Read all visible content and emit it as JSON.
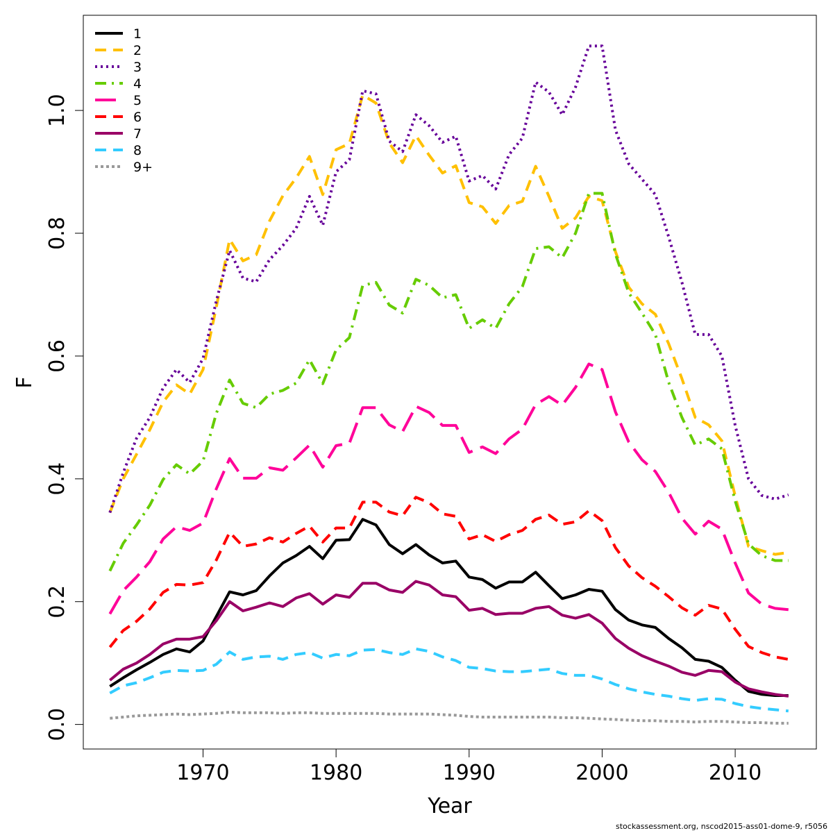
{
  "footer": {
    "text": "stockassessment.org, nscod2015-ass01-dome-9, r5056"
  },
  "chart_data": {
    "type": "line",
    "title": "",
    "xlabel": "Year",
    "ylabel": "F",
    "xlim": [
      1961.0,
      2016.1
    ],
    "ylim": [
      -0.04,
      1.155
    ],
    "xticks": [
      1970,
      1980,
      1990,
      2000,
      2010
    ],
    "yticks": [
      0.0,
      0.2,
      0.4,
      0.6,
      0.8,
      1.0
    ],
    "ytick_labels": [
      "0.0",
      "0.2",
      "0.4",
      "0.6",
      "0.8",
      "1.0"
    ],
    "grid": false,
    "legend_position": "top-left",
    "x": [
      1963,
      1964,
      1965,
      1966,
      1967,
      1968,
      1969,
      1970,
      1971,
      1972,
      1973,
      1974,
      1975,
      1976,
      1977,
      1978,
      1979,
      1980,
      1981,
      1982,
      1983,
      1984,
      1985,
      1986,
      1987,
      1988,
      1989,
      1990,
      1991,
      1992,
      1993,
      1994,
      1995,
      1996,
      1997,
      1998,
      1999,
      2000,
      2001,
      2002,
      2003,
      2004,
      2005,
      2006,
      2007,
      2008,
      2009,
      2010,
      2011,
      2012,
      2013,
      2014
    ],
    "series": [
      {
        "name": "1",
        "color": "#000000",
        "dash": "solid",
        "values": [
          0.062,
          0.076,
          0.089,
          0.101,
          0.114,
          0.123,
          0.118,
          0.136,
          0.176,
          0.216,
          0.211,
          0.218,
          0.242,
          0.263,
          0.275,
          0.29,
          0.27,
          0.3,
          0.301,
          0.334,
          0.325,
          0.293,
          0.278,
          0.293,
          0.276,
          0.263,
          0.266,
          0.24,
          0.236,
          0.222,
          0.232,
          0.232,
          0.248,
          0.226,
          0.205,
          0.211,
          0.22,
          0.217,
          0.187,
          0.17,
          0.162,
          0.158,
          0.14,
          0.125,
          0.106,
          0.103,
          0.093,
          0.072,
          0.054,
          0.049,
          0.047,
          0.047
        ]
      },
      {
        "name": "2",
        "color": "#ffc000",
        "dash": "16,10",
        "values": [
          0.345,
          0.4,
          0.44,
          0.48,
          0.525,
          0.553,
          0.538,
          0.578,
          0.68,
          0.79,
          0.755,
          0.765,
          0.82,
          0.861,
          0.89,
          0.925,
          0.863,
          0.936,
          0.946,
          1.025,
          1.012,
          0.947,
          0.915,
          0.959,
          0.927,
          0.898,
          0.91,
          0.85,
          0.843,
          0.816,
          0.845,
          0.852,
          0.909,
          0.86,
          0.808,
          0.825,
          0.86,
          0.853,
          0.77,
          0.712,
          0.685,
          0.668,
          0.62,
          0.563,
          0.5,
          0.488,
          0.462,
          0.372,
          0.29,
          0.283,
          0.277,
          0.28
        ]
      },
      {
        "name": "3",
        "color": "#660099",
        "dash": "3,5",
        "values": [
          0.345,
          0.41,
          0.466,
          0.5,
          0.548,
          0.578,
          0.557,
          0.596,
          0.69,
          0.772,
          0.727,
          0.721,
          0.757,
          0.78,
          0.808,
          0.86,
          0.813,
          0.9,
          0.92,
          1.032,
          1.027,
          0.95,
          0.933,
          0.993,
          0.975,
          0.948,
          0.958,
          0.885,
          0.894,
          0.872,
          0.928,
          0.955,
          1.046,
          1.03,
          0.993,
          1.038,
          1.105,
          1.105,
          0.968,
          0.913,
          0.888,
          0.863,
          0.794,
          0.72,
          0.635,
          0.635,
          0.6,
          0.487,
          0.4,
          0.373,
          0.367,
          0.374
        ]
      },
      {
        "name": "4",
        "color": "#66cc00",
        "dash": "16,8,3,8",
        "values": [
          0.25,
          0.295,
          0.325,
          0.357,
          0.399,
          0.423,
          0.408,
          0.429,
          0.507,
          0.561,
          0.523,
          0.516,
          0.538,
          0.544,
          0.556,
          0.594,
          0.555,
          0.61,
          0.63,
          0.715,
          0.72,
          0.683,
          0.67,
          0.725,
          0.715,
          0.695,
          0.7,
          0.645,
          0.659,
          0.645,
          0.685,
          0.713,
          0.775,
          0.778,
          0.76,
          0.8,
          0.865,
          0.865,
          0.766,
          0.703,
          0.67,
          0.635,
          0.557,
          0.5,
          0.455,
          0.465,
          0.449,
          0.364,
          0.294,
          0.275,
          0.267,
          0.267
        ]
      },
      {
        "name": "5",
        "color": "#ff0099",
        "dash": "30,12",
        "values": [
          0.18,
          0.218,
          0.24,
          0.265,
          0.302,
          0.322,
          0.316,
          0.328,
          0.384,
          0.433,
          0.401,
          0.401,
          0.418,
          0.414,
          0.434,
          0.455,
          0.419,
          0.454,
          0.458,
          0.516,
          0.516,
          0.488,
          0.477,
          0.518,
          0.508,
          0.487,
          0.487,
          0.443,
          0.452,
          0.441,
          0.465,
          0.481,
          0.521,
          0.534,
          0.52,
          0.549,
          0.587,
          0.578,
          0.509,
          0.46,
          0.431,
          0.412,
          0.378,
          0.336,
          0.31,
          0.331,
          0.318,
          0.263,
          0.214,
          0.196,
          0.189,
          0.187
        ]
      },
      {
        "name": "6",
        "color": "#ff0000",
        "dash": "16,10",
        "values": [
          0.126,
          0.153,
          0.168,
          0.188,
          0.215,
          0.228,
          0.227,
          0.231,
          0.268,
          0.313,
          0.29,
          0.294,
          0.304,
          0.297,
          0.311,
          0.323,
          0.297,
          0.32,
          0.32,
          0.362,
          0.362,
          0.346,
          0.34,
          0.37,
          0.361,
          0.343,
          0.339,
          0.302,
          0.309,
          0.298,
          0.309,
          0.316,
          0.334,
          0.341,
          0.326,
          0.33,
          0.348,
          0.332,
          0.288,
          0.258,
          0.239,
          0.225,
          0.208,
          0.19,
          0.178,
          0.194,
          0.188,
          0.155,
          0.127,
          0.117,
          0.11,
          0.106
        ]
      },
      {
        "name": "7",
        "color": "#990066",
        "dash": "solid",
        "values": [
          0.072,
          0.09,
          0.1,
          0.114,
          0.131,
          0.139,
          0.139,
          0.143,
          0.169,
          0.2,
          0.185,
          0.191,
          0.198,
          0.192,
          0.206,
          0.213,
          0.196,
          0.211,
          0.207,
          0.23,
          0.23,
          0.219,
          0.215,
          0.233,
          0.227,
          0.211,
          0.208,
          0.186,
          0.189,
          0.179,
          0.181,
          0.181,
          0.189,
          0.192,
          0.178,
          0.173,
          0.179,
          0.165,
          0.14,
          0.124,
          0.112,
          0.103,
          0.095,
          0.085,
          0.08,
          0.088,
          0.086,
          0.069,
          0.058,
          0.053,
          0.049,
          0.046
        ]
      },
      {
        "name": "8",
        "color": "#33ccff",
        "dash": "16,10",
        "values": [
          0.051,
          0.063,
          0.068,
          0.076,
          0.085,
          0.088,
          0.087,
          0.088,
          0.098,
          0.118,
          0.106,
          0.11,
          0.111,
          0.106,
          0.114,
          0.117,
          0.108,
          0.114,
          0.112,
          0.121,
          0.122,
          0.117,
          0.114,
          0.123,
          0.119,
          0.11,
          0.104,
          0.093,
          0.091,
          0.087,
          0.086,
          0.086,
          0.088,
          0.09,
          0.083,
          0.08,
          0.08,
          0.074,
          0.065,
          0.058,
          0.053,
          0.049,
          0.046,
          0.042,
          0.039,
          0.042,
          0.041,
          0.034,
          0.029,
          0.026,
          0.024,
          0.022
        ]
      },
      {
        "name": "9+",
        "color": "#999999",
        "dash": "4,4",
        "values": [
          0.01,
          0.012,
          0.014,
          0.015,
          0.016,
          0.017,
          0.016,
          0.017,
          0.018,
          0.02,
          0.019,
          0.019,
          0.019,
          0.018,
          0.019,
          0.019,
          0.018,
          0.018,
          0.018,
          0.018,
          0.018,
          0.017,
          0.017,
          0.017,
          0.017,
          0.016,
          0.015,
          0.013,
          0.012,
          0.012,
          0.012,
          0.012,
          0.012,
          0.012,
          0.011,
          0.011,
          0.01,
          0.009,
          0.008,
          0.007,
          0.006,
          0.006,
          0.005,
          0.005,
          0.004,
          0.005,
          0.005,
          0.004,
          0.003,
          0.003,
          0.002,
          0.002
        ]
      }
    ]
  }
}
